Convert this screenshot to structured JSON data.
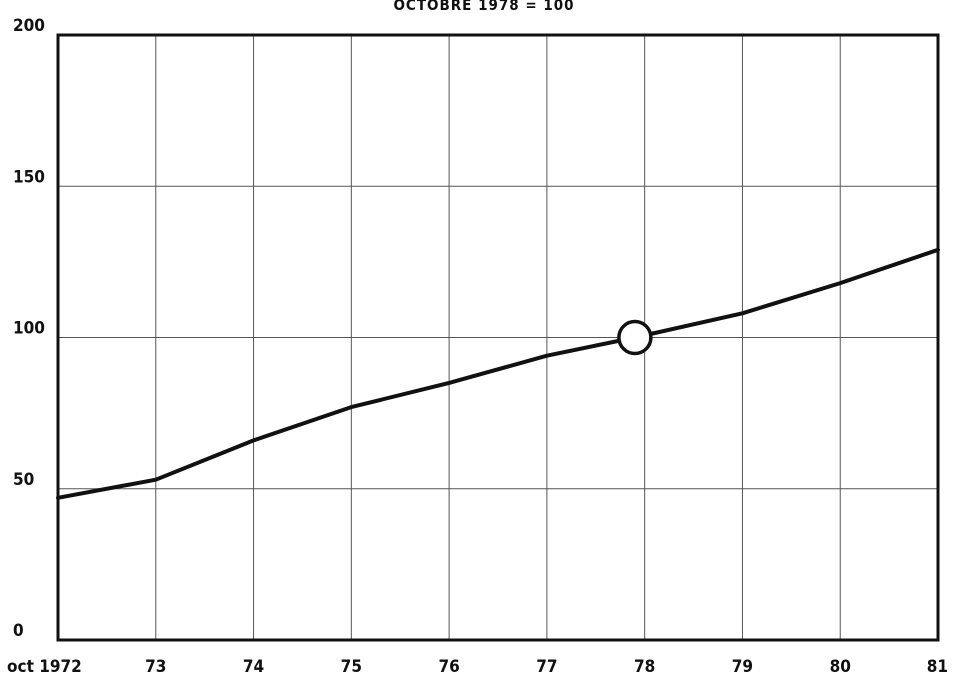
{
  "chart_data": {
    "type": "line",
    "title": "OCTOBRE    1978  =  100",
    "xlabel": "",
    "ylabel": "",
    "x": [
      1972,
      1973,
      1974,
      1975,
      1976,
      1977,
      1977.9,
      1979,
      1980,
      1981
    ],
    "x_tick_values": [
      1972,
      1973,
      1974,
      1975,
      1976,
      1977,
      1978,
      1979,
      1980,
      1981
    ],
    "x_tick_labels": [
      "oct 1972",
      "73",
      "74",
      "75",
      "76",
      "77",
      "78",
      "79",
      "80",
      "81"
    ],
    "xlim": [
      1972,
      1981
    ],
    "y_ticks": [
      0,
      50,
      100,
      150,
      200
    ],
    "y_tick_labels": [
      "0",
      "50",
      "100",
      "150",
      "200"
    ],
    "ylim": [
      0,
      200
    ],
    "grid": true,
    "series": [
      {
        "values": [
          47,
          53,
          66,
          77,
          85,
          94,
          100,
          108,
          118,
          129
        ]
      }
    ],
    "reference_point": {
      "x": 1977.9,
      "y": 100
    }
  }
}
